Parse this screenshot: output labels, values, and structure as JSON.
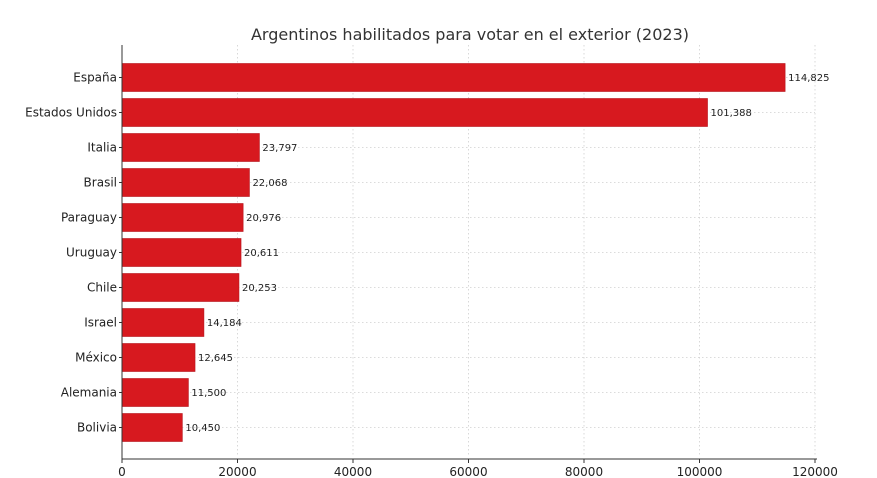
{
  "chart_data": {
    "type": "bar",
    "orientation": "horizontal",
    "title": "Argentinos habilitados para votar en el exterior (2023)",
    "xlabel": "",
    "ylabel": "",
    "categories": [
      "España",
      "Estados Unidos",
      "Italia",
      "Brasil",
      "Paraguay",
      "Uruguay",
      "Chile",
      "Israel",
      "México",
      "Alemania",
      "Bolivia"
    ],
    "values": [
      114825,
      101388,
      23797,
      22068,
      20976,
      20611,
      20253,
      14184,
      12645,
      11500,
      10450
    ],
    "value_labels": [
      "114,825",
      "101,388",
      "23,797",
      "22,068",
      "20,976",
      "20,611",
      "20,253",
      "14,184",
      "12,645",
      "11,500",
      "10,450"
    ],
    "xlim": [
      0,
      120000
    ],
    "x_ticks": [
      0,
      20000,
      40000,
      60000,
      80000,
      100000,
      120000
    ],
    "x_tick_labels": [
      "0",
      "20000",
      "40000",
      "60000",
      "80000",
      "100000",
      "120000"
    ],
    "grid": true,
    "legend": "none",
    "colors": {
      "bar": "#d7191f",
      "bar_edge": "#b5121a"
    }
  }
}
